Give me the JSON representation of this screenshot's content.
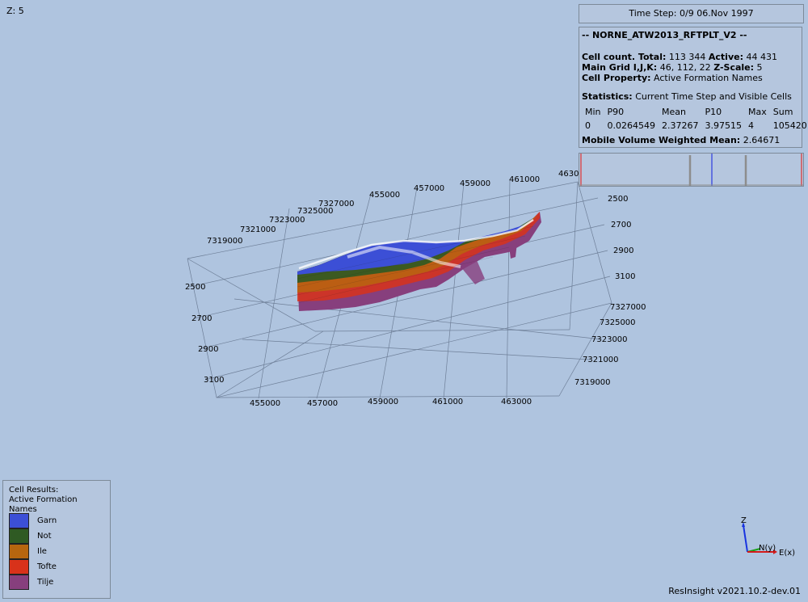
{
  "z_scale_label": "Z: 5",
  "time_step": "Time Step: 0/9 06.Nov 1997",
  "info": {
    "case_name": "-- NORNE_ATW2013_RFTPLT_V2 --",
    "cell_count_label": "Cell count. Total:",
    "cell_count_total": "113 344",
    "active_label": "Active:",
    "active_value": "44 431",
    "main_grid_label": "Main Grid I,J,K:",
    "main_grid_value": "46, 112, 22",
    "zscale_label": "Z-Scale:",
    "zscale_value": "5",
    "cell_property_label": "Cell Property:",
    "cell_property_value": "Active Formation Names",
    "statistics_label": "Statistics:",
    "statistics_value": "Current Time Step and Visible Cells",
    "stats_headers": [
      "Min",
      "P90",
      "Mean",
      "P10",
      "Max",
      "Sum"
    ],
    "stats_values": [
      "0",
      "0.0264549",
      "2.37267",
      "3.97515",
      "4",
      "105420"
    ],
    "mobile_label": "Mobile Volume Weighted Mean:",
    "mobile_value": "2.64671"
  },
  "axes": {
    "x_top_ticks": [
      "455000",
      "457000",
      "459000",
      "461000",
      "4630"
    ],
    "y_left_ticks": [
      "7319000",
      "7321000",
      "7323000",
      "7325000",
      "7327000"
    ],
    "z_left_ticks": [
      "2500",
      "2700",
      "2900",
      "3100"
    ],
    "z_right_ticks": [
      "2500",
      "2700",
      "2900",
      "3100"
    ],
    "y_right_ticks": [
      "7327000",
      "7325000",
      "7323000",
      "7321000",
      "7319000"
    ],
    "x_bottom_ticks": [
      "455000",
      "457000",
      "459000",
      "461000",
      "463000"
    ]
  },
  "legend": {
    "title_line1": "Cell Results:",
    "title_line2": "Active Formation Names",
    "items": [
      {
        "label": "Garn",
        "color": "#3c4fd6"
      },
      {
        "label": "Not",
        "color": "#2f5a23"
      },
      {
        "label": "Ile",
        "color": "#b7660f"
      },
      {
        "label": "Tofte",
        "color": "#d8321a"
      },
      {
        "label": "Tilje",
        "color": "#873f7d"
      }
    ]
  },
  "triad": {
    "z_label": "Z",
    "n_label": "N(y)",
    "e_label": "E(x)"
  },
  "version": "ResInsight v2021.10.2-dev.01"
}
